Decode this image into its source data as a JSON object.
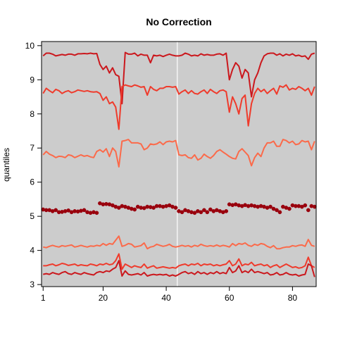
{
  "chart_data": {
    "type": "line",
    "title": "No Correction",
    "xlabel": "",
    "ylabel": "quantiles",
    "xlim": [
      1,
      87
    ],
    "ylim": [
      3,
      10
    ],
    "xticks": [
      1,
      20,
      40,
      60,
      80
    ],
    "yticks": [
      3,
      4,
      5,
      6,
      7,
      8,
      9,
      10
    ],
    "grid": false,
    "background": "#cccccc",
    "vline": {
      "x": 43.5,
      "color": "#ffffff"
    },
    "series": [
      {
        "style": "line",
        "color": "#cb181d",
        "x": [
          1,
          2,
          3,
          4,
          5,
          6,
          7,
          8,
          9,
          10,
          11,
          12,
          13,
          14,
          15,
          16,
          17,
          18,
          19,
          20,
          21,
          22,
          23,
          24,
          25,
          26,
          27,
          28,
          29,
          30,
          31,
          32,
          33,
          34,
          35,
          36,
          37,
          38,
          39,
          40,
          41,
          42,
          43,
          44,
          45,
          46,
          47,
          48,
          49,
          50,
          51,
          52,
          53,
          54,
          55,
          56,
          57,
          58,
          59,
          60,
          61,
          62,
          63,
          64,
          65,
          66,
          67,
          68,
          69,
          70,
          71,
          72,
          73,
          74,
          75,
          76,
          77,
          78,
          79,
          80,
          81,
          82,
          83,
          84,
          85,
          86,
          87
        ],
        "values": [
          9.7,
          9.78,
          9.78,
          9.75,
          9.7,
          9.72,
          9.74,
          9.72,
          9.75,
          9.75,
          9.72,
          9.76,
          9.76,
          9.77,
          9.76,
          9.78,
          9.76,
          9.77,
          9.45,
          9.3,
          9.4,
          9.2,
          9.35,
          9.15,
          9.1,
          8.3,
          9.8,
          9.75,
          9.75,
          9.78,
          9.7,
          9.75,
          9.72,
          9.72,
          9.5,
          9.72,
          9.7,
          9.72,
          9.68,
          9.72,
          9.75,
          9.72,
          9.7,
          9.7,
          9.72,
          9.78,
          9.75,
          9.7,
          9.72,
          9.7,
          9.76,
          9.72,
          9.74,
          9.72,
          9.72,
          9.75,
          9.76,
          9.72,
          9.78,
          9.0,
          9.3,
          9.5,
          9.4,
          9.05,
          9.3,
          9.2,
          8.5,
          9.0,
          9.2,
          9.5,
          9.7,
          9.76,
          9.78,
          9.78,
          9.72,
          9.76,
          9.7,
          9.75,
          9.72,
          9.76,
          9.7,
          9.72,
          9.68,
          9.7,
          9.6,
          9.75,
          9.78
        ]
      },
      {
        "style": "line",
        "color": "#ef3b2c",
        "x": [
          1,
          2,
          3,
          4,
          5,
          6,
          7,
          8,
          9,
          10,
          11,
          12,
          13,
          14,
          15,
          16,
          17,
          18,
          19,
          20,
          21,
          22,
          23,
          24,
          25,
          26,
          27,
          28,
          29,
          30,
          31,
          32,
          33,
          34,
          35,
          36,
          37,
          38,
          39,
          40,
          41,
          42,
          43,
          44,
          45,
          46,
          47,
          48,
          49,
          50,
          51,
          52,
          53,
          54,
          55,
          56,
          57,
          58,
          59,
          60,
          61,
          62,
          63,
          64,
          65,
          66,
          67,
          68,
          69,
          70,
          71,
          72,
          73,
          74,
          75,
          76,
          77,
          78,
          79,
          80,
          81,
          82,
          83,
          84,
          85,
          86,
          87
        ],
        "values": [
          8.6,
          8.75,
          8.68,
          8.62,
          8.72,
          8.68,
          8.6,
          8.65,
          8.68,
          8.62,
          8.65,
          8.7,
          8.68,
          8.66,
          8.68,
          8.65,
          8.64,
          8.65,
          8.6,
          8.4,
          8.5,
          8.3,
          8.35,
          8.2,
          7.55,
          8.8,
          8.85,
          8.82,
          8.8,
          8.85,
          8.82,
          8.78,
          8.8,
          8.55,
          8.8,
          8.72,
          8.68,
          8.75,
          8.75,
          8.8,
          8.8,
          8.78,
          8.8,
          8.58,
          8.65,
          8.7,
          8.6,
          8.68,
          8.6,
          8.58,
          8.65,
          8.7,
          8.6,
          8.72,
          8.65,
          8.6,
          8.68,
          8.7,
          8.65,
          8.05,
          8.5,
          8.3,
          8.0,
          8.45,
          8.55,
          7.65,
          8.3,
          8.6,
          8.75,
          8.65,
          8.72,
          8.6,
          8.68,
          8.75,
          8.58,
          8.82,
          8.78,
          8.85,
          8.7,
          8.75,
          8.72,
          8.8,
          8.75,
          8.68,
          8.75,
          8.55,
          8.8
        ]
      },
      {
        "style": "line",
        "color": "#fb6a4a",
        "x": [
          1,
          2,
          3,
          4,
          5,
          6,
          7,
          8,
          9,
          10,
          11,
          12,
          13,
          14,
          15,
          16,
          17,
          18,
          19,
          20,
          21,
          22,
          23,
          24,
          25,
          26,
          27,
          28,
          29,
          30,
          31,
          32,
          33,
          34,
          35,
          36,
          37,
          38,
          39,
          40,
          41,
          42,
          43,
          44,
          45,
          46,
          47,
          48,
          49,
          50,
          51,
          52,
          53,
          54,
          55,
          56,
          57,
          58,
          59,
          60,
          61,
          62,
          63,
          64,
          65,
          66,
          67,
          68,
          69,
          70,
          71,
          72,
          73,
          74,
          75,
          76,
          77,
          78,
          79,
          80,
          81,
          82,
          83,
          84,
          85,
          86,
          87
        ],
        "values": [
          6.8,
          6.9,
          6.82,
          6.78,
          6.72,
          6.76,
          6.75,
          6.72,
          6.8,
          6.78,
          6.72,
          6.76,
          6.8,
          6.76,
          6.78,
          6.74,
          6.72,
          6.9,
          6.95,
          6.88,
          6.98,
          6.75,
          7.0,
          6.9,
          6.45,
          7.2,
          7.22,
          7.25,
          7.15,
          7.15,
          7.15,
          7.12,
          6.95,
          7.0,
          7.12,
          7.1,
          7.12,
          7.18,
          7.1,
          7.18,
          7.2,
          7.18,
          7.22,
          6.8,
          6.78,
          6.8,
          6.72,
          6.7,
          6.8,
          6.65,
          6.7,
          6.82,
          6.75,
          6.7,
          6.78,
          6.9,
          6.95,
          6.88,
          6.82,
          6.75,
          6.7,
          6.68,
          6.9,
          6.98,
          6.88,
          6.78,
          6.48,
          6.72,
          6.85,
          6.75,
          7.0,
          7.15,
          7.15,
          7.2,
          7.05,
          7.05,
          7.25,
          7.22,
          7.15,
          7.2,
          7.1,
          7.12,
          7.22,
          7.18,
          7.2,
          6.95,
          7.2
        ]
      },
      {
        "style": "points",
        "color": "#99000d",
        "x": [
          1,
          2,
          3,
          4,
          5,
          6,
          7,
          8,
          9,
          10,
          11,
          12,
          13,
          14,
          15,
          16,
          17,
          18,
          19,
          20,
          21,
          22,
          23,
          24,
          25,
          26,
          27,
          28,
          29,
          30,
          31,
          32,
          33,
          34,
          35,
          36,
          37,
          38,
          39,
          40,
          41,
          42,
          43,
          44,
          45,
          46,
          47,
          48,
          49,
          50,
          51,
          52,
          53,
          54,
          55,
          56,
          57,
          58,
          59,
          60,
          61,
          62,
          63,
          64,
          65,
          66,
          67,
          68,
          69,
          70,
          71,
          72,
          73,
          74,
          75,
          76,
          77,
          78,
          79,
          80,
          81,
          82,
          83,
          84,
          85,
          86,
          87
        ],
        "values": [
          5.2,
          5.18,
          5.18,
          5.15,
          5.18,
          5.12,
          5.13,
          5.15,
          5.17,
          5.12,
          5.15,
          5.14,
          5.16,
          5.18,
          5.12,
          5.1,
          5.12,
          5.1,
          5.38,
          5.35,
          5.36,
          5.35,
          5.32,
          5.28,
          5.25,
          5.3,
          5.28,
          5.25,
          5.22,
          5.2,
          5.28,
          5.25,
          5.24,
          5.28,
          5.27,
          5.25,
          5.3,
          5.3,
          5.28,
          5.3,
          5.32,
          5.28,
          5.25,
          5.15,
          5.12,
          5.18,
          5.15,
          5.12,
          5.1,
          5.15,
          5.12,
          5.18,
          5.12,
          5.2,
          5.15,
          5.18,
          5.15,
          5.12,
          5.15,
          5.35,
          5.33,
          5.35,
          5.32,
          5.3,
          5.33,
          5.3,
          5.32,
          5.3,
          5.28,
          5.3,
          5.28,
          5.25,
          5.28,
          5.22,
          5.18,
          5.12,
          5.28,
          5.25,
          5.22,
          5.32,
          5.3,
          5.3,
          5.28,
          5.32,
          5.18,
          5.3,
          5.28
        ]
      },
      {
        "style": "line",
        "color": "#fb6a4a",
        "x": [
          1,
          2,
          3,
          4,
          5,
          6,
          7,
          8,
          9,
          10,
          11,
          12,
          13,
          14,
          15,
          16,
          17,
          18,
          19,
          20,
          21,
          22,
          23,
          24,
          25,
          26,
          27,
          28,
          29,
          30,
          31,
          32,
          33,
          34,
          35,
          36,
          37,
          38,
          39,
          40,
          41,
          42,
          43,
          44,
          45,
          46,
          47,
          48,
          49,
          50,
          51,
          52,
          53,
          54,
          55,
          56,
          57,
          58,
          59,
          60,
          61,
          62,
          63,
          64,
          65,
          66,
          67,
          68,
          69,
          70,
          71,
          72,
          73,
          74,
          75,
          76,
          77,
          78,
          79,
          80,
          81,
          82,
          83,
          84,
          85,
          86,
          87
        ],
        "values": [
          4.1,
          4.08,
          4.12,
          4.15,
          4.12,
          4.1,
          4.14,
          4.12,
          4.14,
          4.16,
          4.1,
          4.12,
          4.15,
          4.12,
          4.1,
          4.13,
          4.12,
          4.15,
          4.13,
          4.2,
          4.15,
          4.2,
          4.18,
          4.3,
          4.42,
          4.12,
          4.15,
          4.2,
          4.18,
          4.1,
          4.12,
          4.14,
          4.22,
          4.05,
          4.1,
          4.12,
          4.18,
          4.15,
          4.12,
          4.14,
          4.18,
          4.12,
          4.1,
          4.12,
          4.15,
          4.12,
          4.14,
          4.1,
          4.15,
          4.12,
          4.18,
          4.14,
          4.12,
          4.14,
          4.12,
          4.16,
          4.12,
          4.15,
          4.13,
          4.1,
          4.2,
          4.14,
          4.2,
          4.18,
          4.22,
          4.15,
          4.12,
          4.18,
          4.15,
          4.2,
          4.18,
          4.12,
          4.08,
          4.14,
          4.05,
          4.05,
          4.08,
          4.1,
          4.1,
          4.14,
          4.12,
          4.15,
          4.16,
          4.12,
          4.32,
          4.15,
          4.12
        ]
      },
      {
        "style": "line",
        "color": "#ef3b2c",
        "x": [
          1,
          2,
          3,
          4,
          5,
          6,
          7,
          8,
          9,
          10,
          11,
          12,
          13,
          14,
          15,
          16,
          17,
          18,
          19,
          20,
          21,
          22,
          23,
          24,
          25,
          26,
          27,
          28,
          29,
          30,
          31,
          32,
          33,
          34,
          35,
          36,
          37,
          38,
          39,
          40,
          41,
          42,
          43,
          44,
          45,
          46,
          47,
          48,
          49,
          50,
          51,
          52,
          53,
          54,
          55,
          56,
          57,
          58,
          59,
          60,
          61,
          62,
          63,
          64,
          65,
          66,
          67,
          68,
          69,
          70,
          71,
          72,
          73,
          74,
          75,
          76,
          77,
          78,
          79,
          80,
          81,
          82,
          83,
          84,
          85,
          86,
          87
        ],
        "values": [
          3.55,
          3.55,
          3.58,
          3.6,
          3.55,
          3.58,
          3.62,
          3.6,
          3.56,
          3.58,
          3.6,
          3.55,
          3.58,
          3.56,
          3.55,
          3.6,
          3.58,
          3.55,
          3.6,
          3.58,
          3.62,
          3.58,
          3.6,
          3.7,
          3.9,
          3.45,
          3.6,
          3.55,
          3.5,
          3.55,
          3.52,
          3.5,
          3.6,
          3.48,
          3.52,
          3.55,
          3.48,
          3.5,
          3.52,
          3.5,
          3.48,
          3.5,
          3.48,
          3.55,
          3.58,
          3.6,
          3.55,
          3.6,
          3.58,
          3.62,
          3.55,
          3.6,
          3.58,
          3.6,
          3.55,
          3.58,
          3.55,
          3.58,
          3.6,
          3.7,
          3.55,
          3.6,
          3.75,
          3.55,
          3.6,
          3.58,
          3.65,
          3.55,
          3.58,
          3.6,
          3.55,
          3.58,
          3.5,
          3.55,
          3.58,
          3.5,
          3.55,
          3.6,
          3.55,
          3.5,
          3.52,
          3.48,
          3.5,
          3.55,
          3.8,
          3.55,
          3.5
        ]
      },
      {
        "style": "line",
        "color": "#cb181d",
        "x": [
          1,
          2,
          3,
          4,
          5,
          6,
          7,
          8,
          9,
          10,
          11,
          12,
          13,
          14,
          15,
          16,
          17,
          18,
          19,
          20,
          21,
          22,
          23,
          24,
          25,
          26,
          27,
          28,
          29,
          30,
          31,
          32,
          33,
          34,
          35,
          36,
          37,
          38,
          39,
          40,
          41,
          42,
          43,
          44,
          45,
          46,
          47,
          48,
          49,
          50,
          51,
          52,
          53,
          54,
          55,
          56,
          57,
          58,
          59,
          60,
          61,
          62,
          63,
          64,
          65,
          66,
          67,
          68,
          69,
          70,
          71,
          72,
          73,
          74,
          75,
          76,
          77,
          78,
          79,
          80,
          81,
          82,
          83,
          84,
          85,
          86,
          87
        ],
        "values": [
          3.3,
          3.32,
          3.3,
          3.35,
          3.32,
          3.3,
          3.35,
          3.38,
          3.32,
          3.3,
          3.35,
          3.32,
          3.3,
          3.35,
          3.32,
          3.3,
          3.28,
          3.35,
          3.38,
          3.35,
          3.4,
          3.38,
          3.45,
          3.5,
          3.7,
          3.25,
          3.4,
          3.3,
          3.28,
          3.3,
          3.32,
          3.28,
          3.35,
          3.25,
          3.28,
          3.3,
          3.28,
          3.3,
          3.28,
          3.3,
          3.25,
          3.28,
          3.25,
          3.3,
          3.35,
          3.38,
          3.32,
          3.35,
          3.3,
          3.38,
          3.32,
          3.35,
          3.3,
          3.35,
          3.32,
          3.38,
          3.32,
          3.35,
          3.32,
          3.5,
          3.35,
          3.4,
          3.55,
          3.35,
          3.4,
          3.35,
          3.45,
          3.35,
          3.38,
          3.35,
          3.32,
          3.35,
          3.28,
          3.3,
          3.35,
          3.28,
          3.3,
          3.35,
          3.3,
          3.28,
          3.3,
          3.25,
          3.28,
          3.3,
          3.6,
          3.55,
          3.22
        ]
      }
    ]
  }
}
